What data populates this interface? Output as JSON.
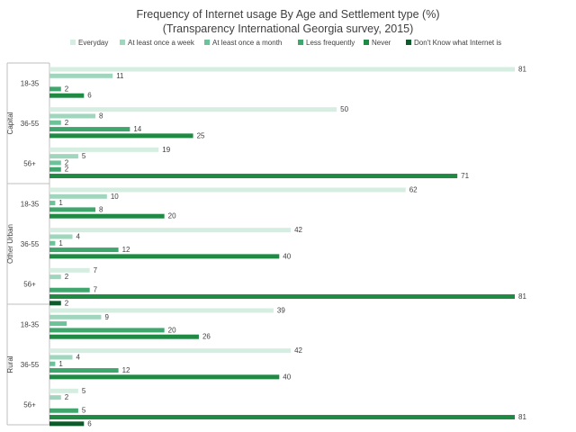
{
  "chart_data": {
    "type": "bar",
    "orientation": "horizontal",
    "title": "Frequency of Internet usage By Age and Settlement type (%)",
    "subtitle": "(Transparency International Georgia survey, 2015)",
    "legend_position": "top",
    "grid": false,
    "xlim": [
      0,
      81
    ],
    "series": [
      {
        "name": "Everyday",
        "color": "#d6eee2"
      },
      {
        "name": "At least once a week",
        "color": "#a0d6bd"
      },
      {
        "name": "At least once a month",
        "color": "#6cc299"
      },
      {
        "name": "Less frequently",
        "color": "#3fa66e"
      },
      {
        "name": "Never",
        "color": "#1f8a44"
      },
      {
        "name": "Don't Know what Internet is",
        "color": "#0d5b2a"
      }
    ],
    "groups": [
      {
        "settlement": "Capital",
        "rows": [
          {
            "age": "18-35",
            "values": [
              81,
              11,
              null,
              2,
              6,
              null
            ]
          },
          {
            "age": "36-55",
            "values": [
              50,
              8,
              2,
              14,
              25,
              null
            ]
          },
          {
            "age": "56+",
            "values": [
              19,
              5,
              2,
              2,
              71,
              null
            ]
          }
        ]
      },
      {
        "settlement": "Other Urban",
        "rows": [
          {
            "age": "18-35",
            "values": [
              62,
              10,
              1,
              8,
              20,
              null
            ]
          },
          {
            "age": "36-55",
            "values": [
              42,
              4,
              1,
              12,
              40,
              null
            ]
          },
          {
            "age": "56+",
            "values": [
              7,
              2,
              null,
              7,
              81,
              2
            ]
          }
        ]
      },
      {
        "settlement": "Rural",
        "rows": [
          {
            "age": "18-35",
            "values": [
              39,
              9,
              3,
              20,
              26,
              null
            ]
          },
          {
            "age": "36-55",
            "values": [
              42,
              4,
              1,
              12,
              40,
              null
            ]
          },
          {
            "age": "56+",
            "values": [
              5,
              2,
              null,
              5,
              81,
              6
            ]
          }
        ]
      }
    ]
  }
}
